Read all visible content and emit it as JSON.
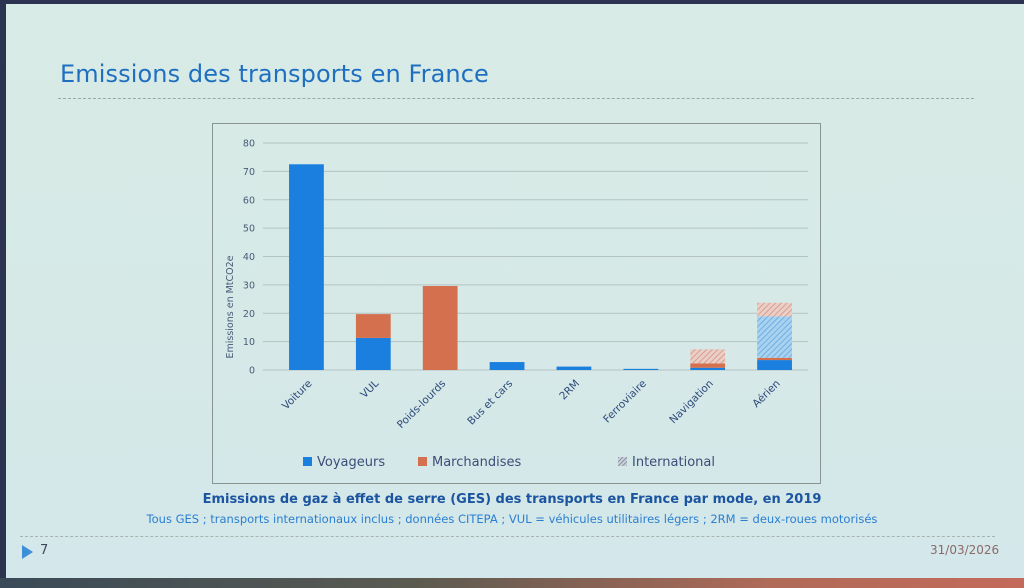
{
  "slide": {
    "title": "Emissions des transports en France",
    "caption_main": "Emissions de gaz à effet de serre (GES) des transports en France par mode, en 2019",
    "caption_sub": "Tous GES ; transports internationaux inclus ; données CITEPA ; VUL = véhicules utilitaires légers ; 2RM = deux-roues motorisés",
    "page_number": "7",
    "date": "31/03/2026",
    "icons": {
      "page_marker": "triangle-right-icon"
    }
  },
  "colors": {
    "title": "#1f6fc0",
    "voyageurs": "#1a7fde",
    "marchandises": "#d5704e",
    "international_voyageurs": "#8fc2ea",
    "international_marchandises": "#e3aea4",
    "axis_text": "#4a5a78",
    "grid": "#b4c2c2"
  },
  "chart_data": {
    "type": "bar",
    "stacked": true,
    "title": "Emissions de gaz à effet de serre (GES) des transports en France par mode, en 2019",
    "xlabel": "",
    "ylabel": "Emissions en MtCO2e",
    "ylim": [
      0,
      80
    ],
    "yticks": [
      0,
      10,
      20,
      30,
      40,
      50,
      60,
      70,
      80
    ],
    "grid": true,
    "legend_position": "bottom",
    "categories": [
      "Voiture",
      "VUL",
      "Poids-lourds",
      "Bus et cars",
      "2RM",
      "Ferroviaire",
      "Navigation",
      "Aérien"
    ],
    "series": [
      {
        "name": "Voyageurs",
        "key": "voyageurs",
        "hatched": false,
        "values": [
          72.5,
          11.3,
          0,
          2.8,
          1.2,
          0.4,
          0.8,
          3.5
        ]
      },
      {
        "name": "Marchandises",
        "key": "marchandises",
        "hatched": false,
        "values": [
          0,
          8.4,
          29.6,
          0,
          0,
          0,
          1.5,
          0.8
        ]
      },
      {
        "name": "International (voyageurs)",
        "key": "international_voyageurs",
        "hatched": true,
        "values": [
          0,
          0,
          0,
          0,
          0,
          0,
          0,
          14.6
        ]
      },
      {
        "name": "International (marchandises)",
        "key": "international_marchandises",
        "hatched": true,
        "values": [
          0,
          0,
          0,
          0,
          0,
          0,
          5.0,
          4.8
        ]
      }
    ],
    "legend": [
      {
        "label": "Voyageurs",
        "key": "voyageurs",
        "hatched": false
      },
      {
        "label": "Marchandises",
        "key": "marchandises",
        "hatched": false
      },
      {
        "label": "International",
        "key": "international",
        "hatched": true
      }
    ]
  }
}
